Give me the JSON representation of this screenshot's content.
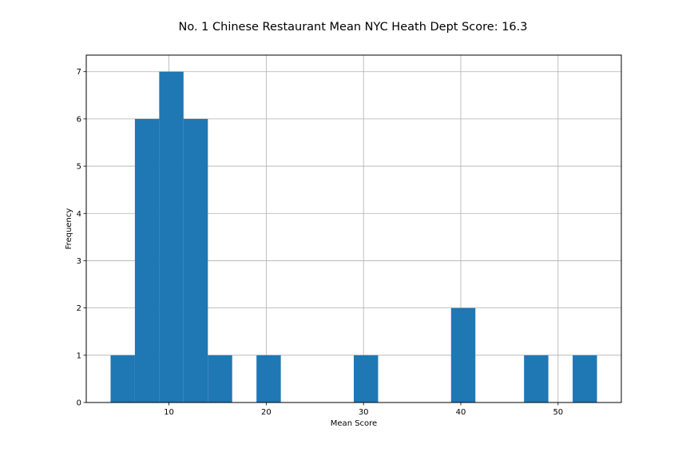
{
  "chart_data": {
    "type": "bar",
    "title": "No. 1 Chinese Restaurant Mean NYC Heath Dept Score: 16.3",
    "xlabel": "Mean Score",
    "ylabel": "Frequency",
    "xlim": [
      1.5,
      56.5
    ],
    "ylim": [
      0,
      7.35
    ],
    "xticks": [
      "10",
      "20",
      "30",
      "40",
      "50"
    ],
    "yticks": [
      "0",
      "1",
      "2",
      "3",
      "4",
      "5",
      "6",
      "7"
    ],
    "grid": true,
    "bar_color": "#1f77b4",
    "bins": [
      {
        "x0": 4.0,
        "x1": 6.5,
        "count": 1
      },
      {
        "x0": 6.5,
        "x1": 9.0,
        "count": 6
      },
      {
        "x0": 9.0,
        "x1": 11.5,
        "count": 7
      },
      {
        "x0": 11.5,
        "x1": 14.0,
        "count": 6
      },
      {
        "x0": 14.0,
        "x1": 16.5,
        "count": 1
      },
      {
        "x0": 19.0,
        "x1": 21.5,
        "count": 1
      },
      {
        "x0": 29.0,
        "x1": 31.5,
        "count": 1
      },
      {
        "x0": 39.0,
        "x1": 41.5,
        "count": 2
      },
      {
        "x0": 46.5,
        "x1": 49.0,
        "count": 1
      },
      {
        "x0": 51.5,
        "x1": 54.0,
        "count": 1
      }
    ]
  }
}
